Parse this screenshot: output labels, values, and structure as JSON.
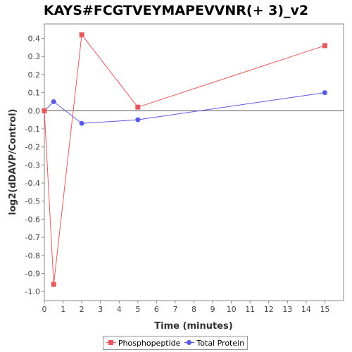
{
  "chart_data": {
    "type": "line",
    "title": "KAYS#FCGTVEYMAPEVVNR(+ 3)_v2",
    "xlabel": "Time (minutes)",
    "ylabel": "log2(dDAVP/Control)",
    "xlim": [
      0,
      16
    ],
    "ylim": [
      -1.05,
      0.48
    ],
    "x_ticks": [
      0,
      1,
      2,
      3,
      4,
      5,
      6,
      7,
      8,
      9,
      10,
      11,
      12,
      13,
      14,
      15
    ],
    "y_ticks": [
      -1.0,
      -0.9,
      -0.8,
      -0.7,
      -0.6,
      -0.5,
      -0.4,
      -0.3,
      -0.2,
      -0.1,
      0.0,
      0.1,
      0.2,
      0.3,
      0.4
    ],
    "x_tick_labels": [
      "0",
      "1",
      "2",
      "3",
      "4",
      "5",
      "6",
      "7",
      "8",
      "9",
      "10",
      "11",
      "12",
      "13",
      "14",
      "15"
    ],
    "y_tick_labels": [
      "-1.0",
      "-0.9",
      "-0.8",
      "-0.7",
      "-0.6",
      "-0.5",
      "-0.4",
      "-0.3",
      "-0.2",
      "-0.1",
      "0.0",
      "0.1",
      "0.2",
      "0.3",
      "0.4"
    ],
    "grid": false,
    "zero_line": true,
    "legend_position": "bottom",
    "series": [
      {
        "name": "Phosphopeptide",
        "color": "#e8585a",
        "marker": "square",
        "x": [
          0,
          0.5,
          2,
          5,
          15
        ],
        "y": [
          0.0,
          -0.96,
          0.42,
          0.02,
          0.36
        ]
      },
      {
        "name": "Total Protein",
        "color": "#5a5ae8",
        "marker": "circle",
        "x": [
          0,
          0.5,
          2,
          5,
          15
        ],
        "y": [
          0.0,
          0.05,
          -0.07,
          -0.05,
          0.1
        ]
      }
    ]
  }
}
